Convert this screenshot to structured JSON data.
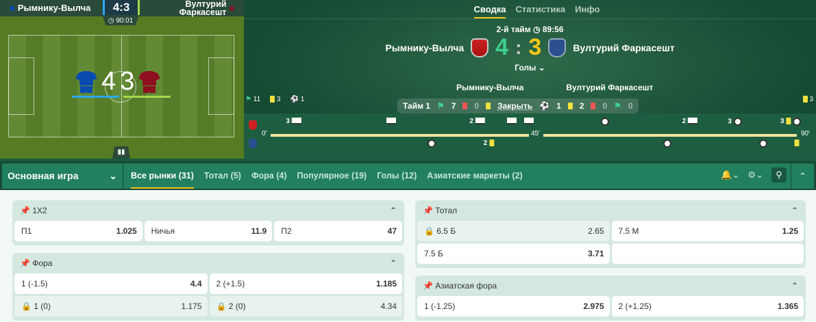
{
  "pitch": {
    "home": "Рымнику-Вылча",
    "away_line1": "Вултурий",
    "away_line2": "Фаркасешт",
    "score": "4:3",
    "clock": "90:01",
    "home_goals": "4",
    "away_goals": "3",
    "home_color": "#0a4bb0",
    "away_color": "#8f0e1f"
  },
  "hero": {
    "tabs": [
      "Сводка",
      "Статистика",
      "Инфо"
    ],
    "period": "2-й тайм",
    "clock": "89:56",
    "home": "Рымнику-Вылча",
    "away": "Вултурий Фаркасешт",
    "home_score": "4",
    "away_score": "3",
    "sep": ":",
    "goals_label": "Голы",
    "left_stats": {
      "corners": "11",
      "yellow": "3",
      "goals": "1"
    },
    "right_stats": {
      "yellow": "3"
    },
    "tooltip": {
      "period": "Тайм 1",
      "home_corners": "7",
      "home_red": "0",
      "close": "Закрыть",
      "away_goals": "1",
      "away_yellow": "2",
      "away_red": "0",
      "away_corners": "0"
    },
    "timeline": {
      "start": "0'",
      "half": "45'",
      "end": "90'",
      "home_events": [
        {
          "type": "corner",
          "minute": 4,
          "count": "3"
        },
        {
          "type": "corner",
          "minute": 21,
          "count": ""
        },
        {
          "type": "corner",
          "minute": 36,
          "count": "2"
        },
        {
          "type": "corner",
          "minute": 42,
          "count": ""
        },
        {
          "type": "corner",
          "minute": 45,
          "count": ""
        },
        {
          "type": "goal",
          "minute": 56,
          "count": ""
        },
        {
          "type": "corner",
          "minute": 71,
          "count": "2"
        },
        {
          "type": "goal",
          "minute": 79,
          "count": "3"
        },
        {
          "type": "yellow",
          "minute": 88,
          "count": "3"
        },
        {
          "type": "goal",
          "minute": 90,
          "count": ""
        }
      ],
      "away_events": [
        {
          "type": "goal",
          "minute": 28,
          "count": ""
        },
        {
          "type": "yellow",
          "minute": 38,
          "count": "2"
        },
        {
          "type": "goal",
          "minute": 67,
          "count": ""
        },
        {
          "type": "goal",
          "minute": 84,
          "count": ""
        },
        {
          "type": "yellow",
          "minute": 90,
          "count": ""
        }
      ]
    }
  },
  "markets": {
    "selector": "Основная игра",
    "tabs": [
      "Все рынки (31)",
      "Тотал (5)",
      "Фора (4)",
      "Популярное (19)",
      "Голы (12)",
      "Азиатские маркеты (2)"
    ],
    "groups": {
      "x12": {
        "title": "1X2",
        "rows": [
          [
            {
              "l": "П1",
              "v": "1.025"
            },
            {
              "l": "Ничья",
              "v": "11.9"
            },
            {
              "l": "П2",
              "v": "47"
            }
          ]
        ]
      },
      "fora": {
        "title": "Фора",
        "r1": [
          {
            "l": "1 (-1.5)",
            "v": "4.4"
          },
          {
            "l": "2 (+1.5)",
            "v": "1.185"
          }
        ],
        "r2": [
          {
            "l": "1 (0)",
            "v": "1.175",
            "locked": true
          },
          {
            "l": "2 (0)",
            "v": "4.34",
            "locked": true
          }
        ]
      },
      "total": {
        "title": "Тотал",
        "r1": [
          {
            "l": "6.5 Б",
            "v": "2.65",
            "locked": true
          },
          {
            "l": "7.5 М",
            "v": "1.25"
          }
        ],
        "r2": [
          {
            "l": "7.5 Б",
            "v": "3.71"
          }
        ]
      },
      "asian": {
        "title": "Азиатская фора",
        "r1": [
          {
            "l": "1 (-1.25)",
            "v": "2.975"
          },
          {
            "l": "2 (+1.25)",
            "v": "1.365"
          }
        ]
      }
    }
  }
}
